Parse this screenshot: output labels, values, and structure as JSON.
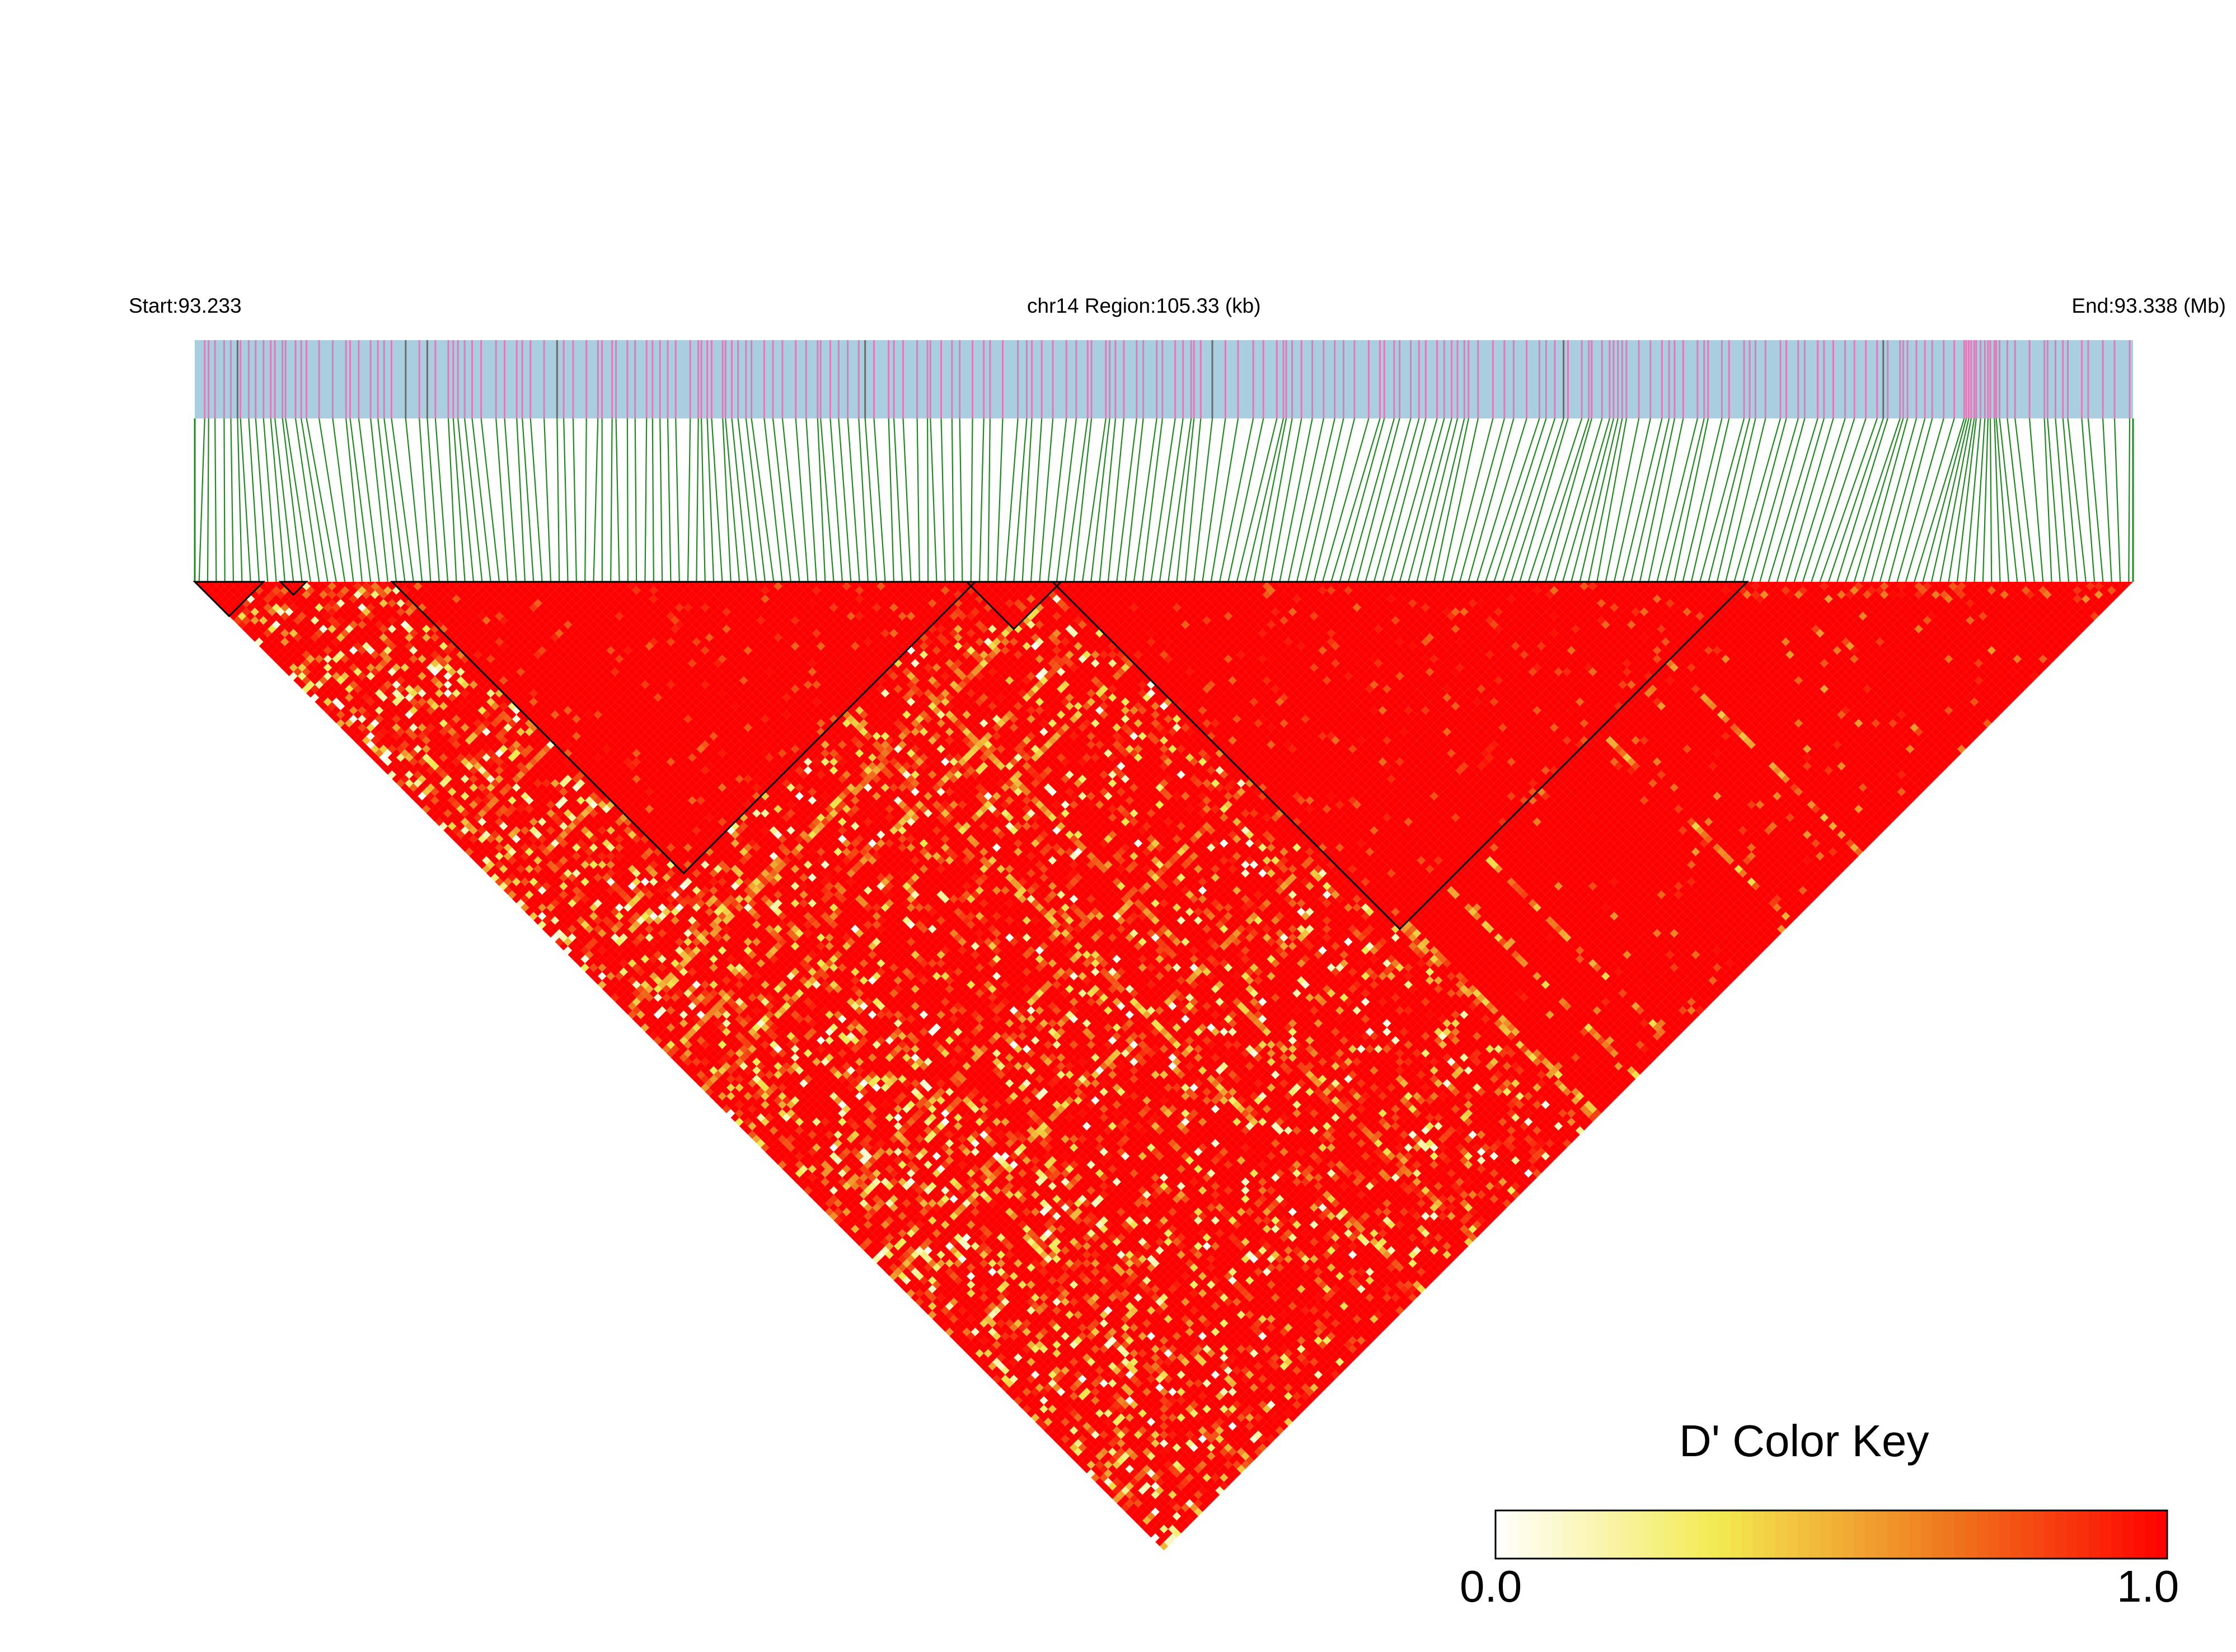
{
  "header": {
    "start_label": "Start:93.233",
    "region_label": "chr14 Region:105.33 (kb)",
    "end_label": "End:93.338 (Mb)"
  },
  "colors": {
    "track_bg": "#a8cee0",
    "snp_tick": "#e07ab8",
    "snp_tick_dark": "#6b6b6b",
    "connector_line": "#1f8a1f",
    "block_outline": "#000000",
    "high_ld": "#ff0000",
    "low_ld": "#ffffff"
  },
  "chart_data": {
    "type": "heatmap",
    "title": "",
    "xlabel": "",
    "ylabel": "",
    "region": {
      "chromosome": "chr14",
      "start_mb": 93.233,
      "end_mb": 93.338,
      "span_kb": 105.33
    },
    "measure": "D'",
    "snp_count": 226,
    "ld_blocks": [
      {
        "first_snp": 0,
        "last_snp": 7
      },
      {
        "first_snp": 10,
        "last_snp": 12
      },
      {
        "first_snp": 23,
        "last_snp": 90
      },
      {
        "first_snp": 90,
        "last_snp": 100
      },
      {
        "first_snp": 100,
        "last_snp": 180
      }
    ],
    "background_d_prime": 1.0,
    "low_ld_bands": [
      {
        "description": "decay from lower-left block edge",
        "offset_snps": [
          1,
          30
        ],
        "mean_d_prime": 0.82
      }
    ],
    "color_key": {
      "title": "D' Color Key",
      "min_label": "0.0",
      "max_label": "1.0",
      "range": [
        0.0,
        1.0
      ],
      "colors": [
        "#ffffff",
        "#f3ea50",
        "#ef7a1e",
        "#ff0000"
      ]
    }
  }
}
